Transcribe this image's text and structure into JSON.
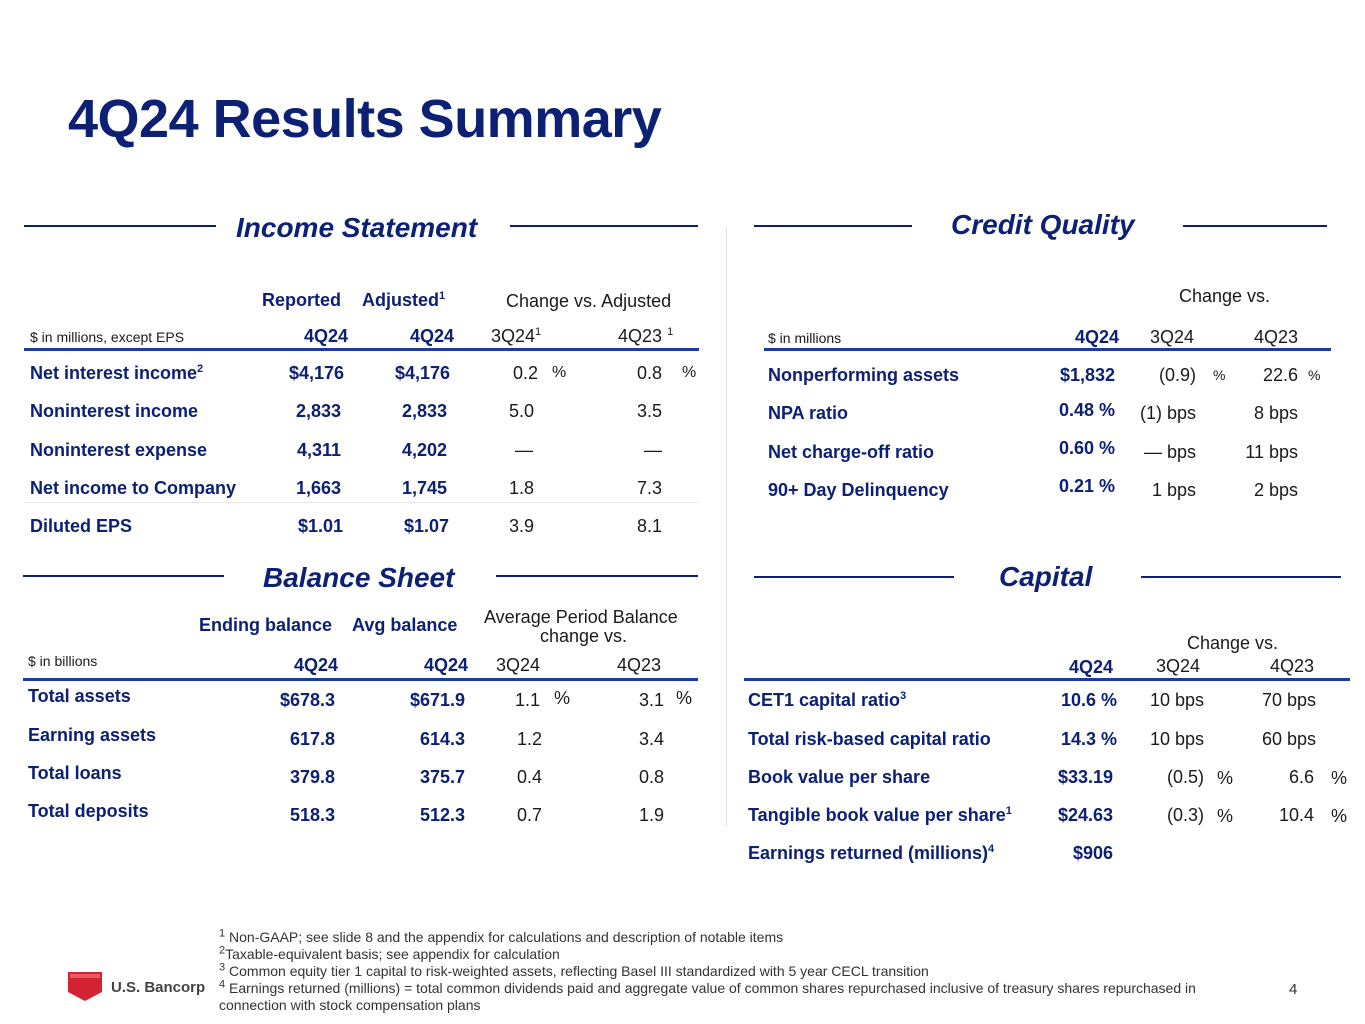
{
  "page_title": "4Q24 Results Summary",
  "page_number": "4",
  "logo_text": "U.S. Bancorp",
  "income": {
    "title": "Income Statement",
    "col_reported": "Reported",
    "col_adjusted": "Adjusted",
    "col_adjusted_sup": "1",
    "col_change": "Change vs. Adjusted",
    "units": "$ in millions, except EPS",
    "sub_reported": "4Q24",
    "sub_adjusted": "4Q24",
    "sub_3q": "3Q24",
    "sub_3q_sup": "1",
    "sub_4q": "4Q23",
    "sub_4q_sup": "1",
    "pct": "%",
    "rows": [
      {
        "label": "Net interest income",
        "sup": "2",
        "reported": "$4,176",
        "adjusted": "$4,176",
        "c3": "0.2",
        "c4": "0.8"
      },
      {
        "label": "Noninterest income",
        "sup": "",
        "reported": "2,833",
        "adjusted": "2,833",
        "c3": "5.0",
        "c4": "3.5"
      },
      {
        "label": "Noninterest expense",
        "sup": "",
        "reported": "4,311",
        "adjusted": "4,202",
        "c3": "—",
        "c4": "—"
      },
      {
        "label": "Net income to Company",
        "sup": "",
        "reported": "1,663",
        "adjusted": "1,745",
        "c3": "1.8",
        "c4": "7.3"
      },
      {
        "label": "Diluted EPS",
        "sup": "",
        "reported": "$1.01",
        "adjusted": "$1.07",
        "c3": "3.9",
        "c4": "8.1"
      }
    ]
  },
  "credit": {
    "title": "Credit Quality",
    "col_change": "Change vs.",
    "units": "$ in millions",
    "sub_q": "4Q24",
    "sub_3q": "3Q24",
    "sub_4q": "4Q23",
    "pct": "%",
    "rows": [
      {
        "label": "Nonperforming assets",
        "value": "$1,832",
        "c3": "(0.9)",
        "c4": "22.6"
      },
      {
        "label": "NPA ratio",
        "value": "0.48 %",
        "c3": "(1) bps",
        "c4": "8 bps"
      },
      {
        "label": "Net charge-off ratio",
        "value": "0.60 %",
        "c3": "— bps",
        "c4": "11 bps"
      },
      {
        "label": "90+ Day Delinquency",
        "value": "0.21 %",
        "c3": "1 bps",
        "c4": "2 bps"
      }
    ]
  },
  "balance": {
    "title": "Balance Sheet",
    "col_ending": "Ending balance",
    "col_avg": "Avg balance",
    "col_change_l1": "Average Period Balance",
    "col_change_l2": "change vs.",
    "units": "$ in billions",
    "sub_ending": "4Q24",
    "sub_avg": "4Q24",
    "sub_3q": "3Q24",
    "sub_4q": "4Q23",
    "pct": "%",
    "rows": [
      {
        "label": "Total assets",
        "ending": "$678.3",
        "avg": "$671.9",
        "c3": "1.1",
        "c4": "3.1"
      },
      {
        "label": "Earning assets",
        "ending": "617.8",
        "avg": "614.3",
        "c3": "1.2",
        "c4": "3.4"
      },
      {
        "label": "Total loans",
        "ending": "379.8",
        "avg": "375.7",
        "c3": "0.4",
        "c4": "0.8"
      },
      {
        "label": "Total deposits",
        "ending": "518.3",
        "avg": "512.3",
        "c3": "0.7",
        "c4": "1.9"
      }
    ]
  },
  "capital": {
    "title": "Capital",
    "col_change": "Change vs.",
    "sub_q": "4Q24",
    "sub_3q": "3Q24",
    "sub_4q": "4Q23",
    "pct": "%",
    "rows": [
      {
        "label": "CET1 capital ratio",
        "sup": "3",
        "value": "10.6 %",
        "c3": "10 bps",
        "c4": "70 bps"
      },
      {
        "label": "Total risk-based capital ratio",
        "sup": "",
        "value": "14.3 %",
        "c3": "10 bps",
        "c4": "60 bps"
      },
      {
        "label": "Book value per share",
        "sup": "",
        "value": "$33.19",
        "c3": "(0.5)",
        "c4": "6.6"
      },
      {
        "label": "Tangible book value per share",
        "sup": "1",
        "value": "$24.63",
        "c3": "(0.3)",
        "c4": "10.4"
      },
      {
        "label": "Earnings returned (millions)",
        "sup": "4",
        "value": "$906",
        "c3": "",
        "c4": ""
      }
    ]
  },
  "footnotes": [
    {
      "mark": "1",
      "text": "Non-GAAP; see slide 8 and the appendix for calculations and description of notable items"
    },
    {
      "mark": "2",
      "text": "Taxable-equivalent basis; see appendix for calculation"
    },
    {
      "mark": "3",
      "text": "Common equity tier 1 capital to risk-weighted assets, reflecting Basel III standardized with 5 year CECL transition"
    },
    {
      "mark": "4",
      "text": "Earnings returned (millions) = total common dividends paid and aggregate value of common shares repurchased inclusive of treasury shares repurchased in"
    },
    {
      "mark": "",
      "text": "connection with stock compensation plans"
    }
  ]
}
